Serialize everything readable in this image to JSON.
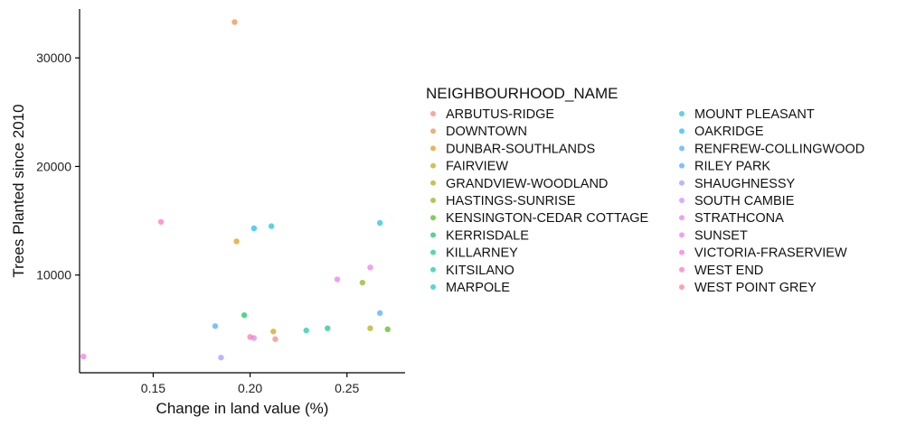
{
  "chart_data": {
    "type": "scatter",
    "xlabel": "Change in land value (%)",
    "ylabel": "Trees Planted since 2010",
    "xlim": [
      0.112,
      0.28
    ],
    "ylim": [
      1000,
      34500
    ],
    "xticks": [
      {
        "value": 0.15,
        "label": "0.15"
      },
      {
        "value": 0.2,
        "label": "0.20"
      },
      {
        "value": 0.25,
        "label": "0.25"
      }
    ],
    "yticks": [
      {
        "value": 10000,
        "label": "10000"
      },
      {
        "value": 20000,
        "label": "20000"
      },
      {
        "value": 30000,
        "label": "30000"
      }
    ],
    "grid": false,
    "legend_position": "right",
    "legend_title": "NEIGHBOURHOOD_NAME",
    "series": [
      {
        "name": "ARBUTUS-RIDGE",
        "color": "#F8766D",
        "points": [
          {
            "x": 0.213,
            "y": 4100
          }
        ]
      },
      {
        "name": "DOWNTOWN",
        "color": "#EA8331",
        "points": [
          {
            "x": 0.192,
            "y": 33300
          }
        ]
      },
      {
        "name": "DUNBAR-SOUTHLANDS",
        "color": "#D89000",
        "points": [
          {
            "x": 0.193,
            "y": 13100
          }
        ]
      },
      {
        "name": "FAIRVIEW",
        "color": "#C09B00",
        "points": [
          {
            "x": 0.212,
            "y": 4800
          }
        ]
      },
      {
        "name": "GRANDVIEW-WOODLAND",
        "color": "#A3A500",
        "points": [
          {
            "x": 0.262,
            "y": 5100
          }
        ]
      },
      {
        "name": "HASTINGS-SUNRISE",
        "color": "#7CAE00",
        "points": [
          {
            "x": 0.258,
            "y": 9300
          }
        ]
      },
      {
        "name": "KENSINGTON-CEDAR COTTAGE",
        "color": "#39B600",
        "points": [
          {
            "x": 0.271,
            "y": 5000
          }
        ]
      },
      {
        "name": "KERRISDALE",
        "color": "#00BB4E",
        "points": [
          {
            "x": 0.197,
            "y": 6300
          }
        ]
      },
      {
        "name": "KILLARNEY",
        "color": "#00BF7D",
        "points": [
          {
            "x": 0.24,
            "y": 5100
          }
        ]
      },
      {
        "name": "KITSILANO",
        "color": "#00C1A3",
        "points": [
          {
            "x": 0.229,
            "y": 4900
          }
        ]
      },
      {
        "name": "MARPOLE",
        "color": "#00BFC4",
        "points": [
          {
            "x": 0.211,
            "y": 14500
          }
        ]
      },
      {
        "name": "MOUNT PLEASANT",
        "color": "#00BAE0",
        "points": [
          {
            "x": 0.267,
            "y": 14800
          }
        ]
      },
      {
        "name": "OAKRIDGE",
        "color": "#00B0F6",
        "points": [
          {
            "x": 0.202,
            "y": 14300
          }
        ]
      },
      {
        "name": "RENFREW-COLLINGWOOD",
        "color": "#35A2FF",
        "points": [
          {
            "x": 0.182,
            "y": 5300
          }
        ]
      },
      {
        "name": "RILEY PARK",
        "color": "#35A2FF",
        "points": [
          {
            "x": 0.267,
            "y": 6500
          }
        ]
      },
      {
        "name": "SHAUGHNESSY",
        "color": "#9590FF",
        "points": [
          {
            "x": 0.185,
            "y": 2400
          }
        ]
      },
      {
        "name": "SOUTH CAMBIE",
        "color": "#C77CFF",
        "points": [
          {
            "x": 0.202,
            "y": 4200
          }
        ]
      },
      {
        "name": "STRATHCONA",
        "color": "#E76BF3",
        "points": [
          {
            "x": 0.245,
            "y": 9600
          }
        ]
      },
      {
        "name": "SUNSET",
        "color": "#E76BF3",
        "points": [
          {
            "x": 0.262,
            "y": 10700
          }
        ]
      },
      {
        "name": "VICTORIA-FRASERVIEW",
        "color": "#FA62DB",
        "points": [
          {
            "x": 0.114,
            "y": 2500
          }
        ]
      },
      {
        "name": "WEST END",
        "color": "#FF62BC",
        "points": [
          {
            "x": 0.154,
            "y": 14900
          }
        ]
      },
      {
        "name": "WEST POINT GREY",
        "color": "#FF6C91",
        "points": [
          {
            "x": 0.2,
            "y": 4300
          }
        ]
      }
    ]
  }
}
